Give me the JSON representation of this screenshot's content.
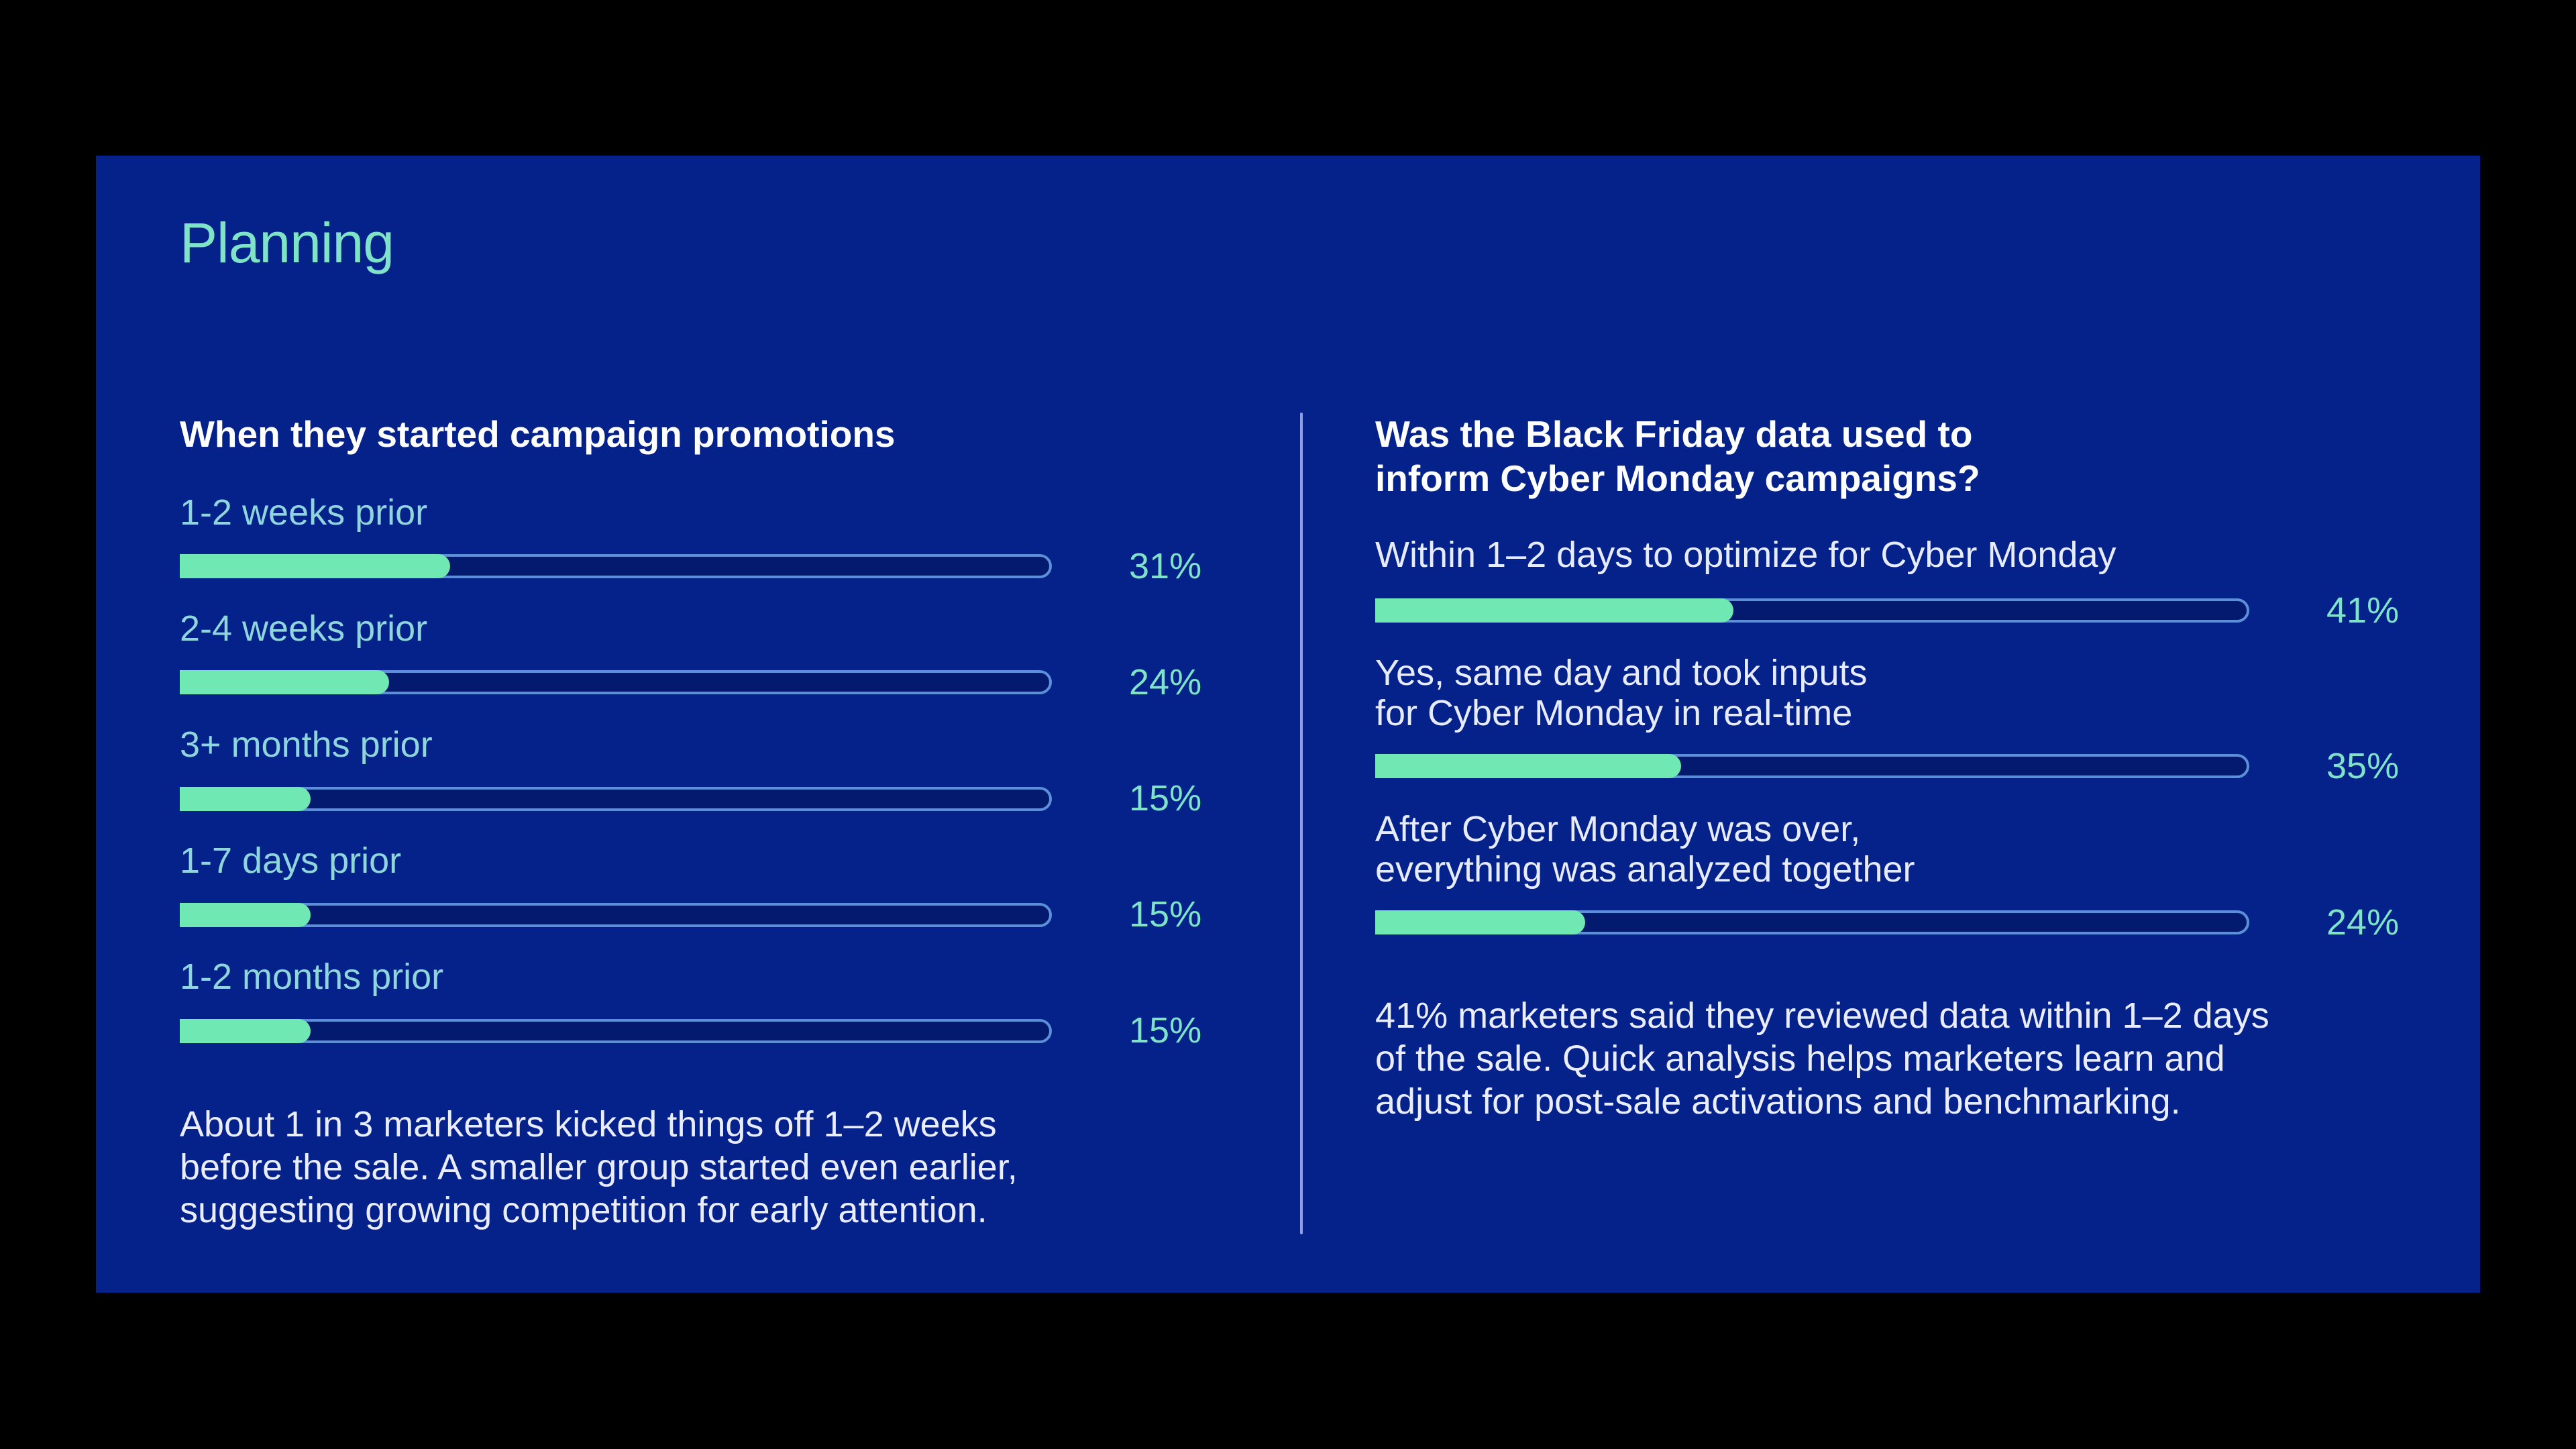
{
  "page": {
    "title": "Planning",
    "colors": {
      "background": "#000000",
      "panel": "#05218a",
      "accent_mint": "#7fe3c8",
      "bar_fill": "#6fe8b4",
      "bar_track_border": "#5b8fd8",
      "divider": "#8f9de8"
    }
  },
  "left": {
    "heading": "When they started campaign promotions",
    "items": [
      {
        "label": "1-2 weeks prior",
        "value": 31,
        "pct": "31%"
      },
      {
        "label": "2-4 weeks prior",
        "value": 24,
        "pct": "24%"
      },
      {
        "label": "3+ months prior",
        "value": 15,
        "pct": "15%"
      },
      {
        "label": "1-7 days prior",
        "value": 15,
        "pct": "15%"
      },
      {
        "label": "1-2 months prior",
        "value": 15,
        "pct": "15%"
      }
    ],
    "paragraph_lines": [
      "About 1 in 3 marketers kicked things off 1–2 weeks",
      "before the sale. A smaller group started even earlier,",
      "suggesting growing competition for early attention."
    ]
  },
  "right": {
    "heading_lines": [
      "Was the Black Friday data used to",
      "inform Cyber Monday campaigns?"
    ],
    "items": [
      {
        "label_lines": [
          "Within 1–2 days to optimize for Cyber Monday"
        ],
        "value": 41,
        "pct": "41%"
      },
      {
        "label_lines": [
          "Yes, same day and took inputs",
          "for Cyber Monday in real-time"
        ],
        "value": 35,
        "pct": "35%"
      },
      {
        "label_lines": [
          "After Cyber Monday was over,",
          "everything was analyzed together"
        ],
        "value": 24,
        "pct": "24%"
      }
    ],
    "paragraph_lines": [
      "41% marketers said they reviewed data within 1–2 days",
      "of the sale. Quick analysis helps marketers learn and",
      "adjust for post-sale activations and benchmarking."
    ]
  },
  "chart_data": [
    {
      "type": "bar",
      "orientation": "horizontal",
      "title": "When they started campaign promotions",
      "categories": [
        "1-2 weeks prior",
        "2-4 weeks prior",
        "3+ months prior",
        "1-7 days prior",
        "1-2 months prior"
      ],
      "values": [
        31,
        24,
        15,
        15,
        15
      ],
      "unit": "%",
      "xlim": [
        0,
        100
      ],
      "grid": false,
      "legend": null
    },
    {
      "type": "bar",
      "orientation": "horizontal",
      "title": "Was the Black Friday data used to inform Cyber Monday campaigns?",
      "categories": [
        "Within 1–2 days to optimize for Cyber Monday",
        "Yes, same day and took inputs for Cyber Monday in real-time",
        "After Cyber Monday was over, everything was analyzed together"
      ],
      "values": [
        41,
        35,
        24
      ],
      "unit": "%",
      "xlim": [
        0,
        100
      ],
      "grid": false,
      "legend": null
    }
  ]
}
